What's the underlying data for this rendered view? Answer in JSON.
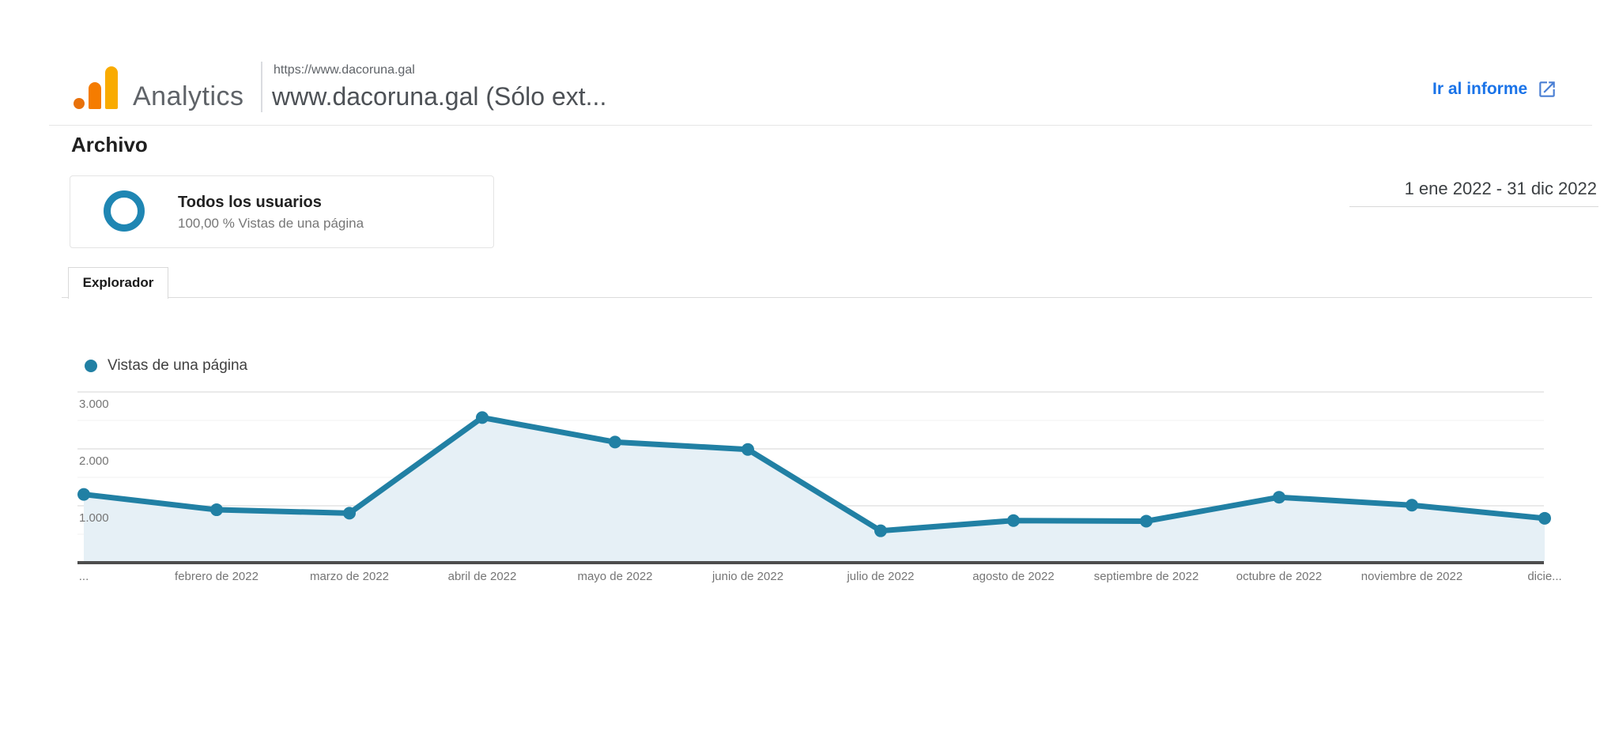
{
  "header": {
    "brand": "Analytics",
    "property_url": "https://www.dacoruna.gal",
    "property_title": "www.dacoruna.gal (Sólo ext...",
    "report_link_label": "Ir al informe"
  },
  "page": {
    "title": "Archivo",
    "segment_name": "Todos los usuarios",
    "segment_detail": "100,00 % Vistas de una página",
    "date_range": "1 ene 2022 - 31 dic 2022",
    "tab_label": "Explorador"
  },
  "chart_data": {
    "type": "line",
    "legend": "Vistas de una página",
    "categories": [
      "...",
      "febrero de 2022",
      "marzo de 2022",
      "abril de 2022",
      "mayo de 2022",
      "junio de 2022",
      "julio de 2022",
      "agosto de 2022",
      "septiembre de 2022",
      "octubre de 2022",
      "noviembre de 2022",
      "dicie..."
    ],
    "series": [
      {
        "name": "Vistas de una página",
        "values": [
          1200,
          930,
          870,
          2550,
          2120,
          1990,
          560,
          740,
          730,
          1150,
          1010,
          780
        ]
      }
    ],
    "yticks": [
      {
        "value": 1000,
        "label": "1.000"
      },
      {
        "value": 2000,
        "label": "2.000"
      },
      {
        "value": 3000,
        "label": "3.000"
      }
    ],
    "minor_gridlines": [
      500,
      1500,
      2500
    ],
    "ylim": [
      0,
      3250
    ],
    "grid": true,
    "legend_position": "top-left"
  },
  "colors": {
    "line": "#2180a4",
    "area_fill": "#e6f0f6",
    "grid_major": "#e4e4e4",
    "grid_minor": "#f2f2f2",
    "axis_baseline": "#4d4d4d",
    "axis_text": "#757575",
    "link_blue": "#1a73e8",
    "segment_ring": "#1f86b3",
    "logo_dot": "#E8710A",
    "logo_bar_mid": "#F57C00",
    "logo_bar_tall": "#F9AB00"
  }
}
